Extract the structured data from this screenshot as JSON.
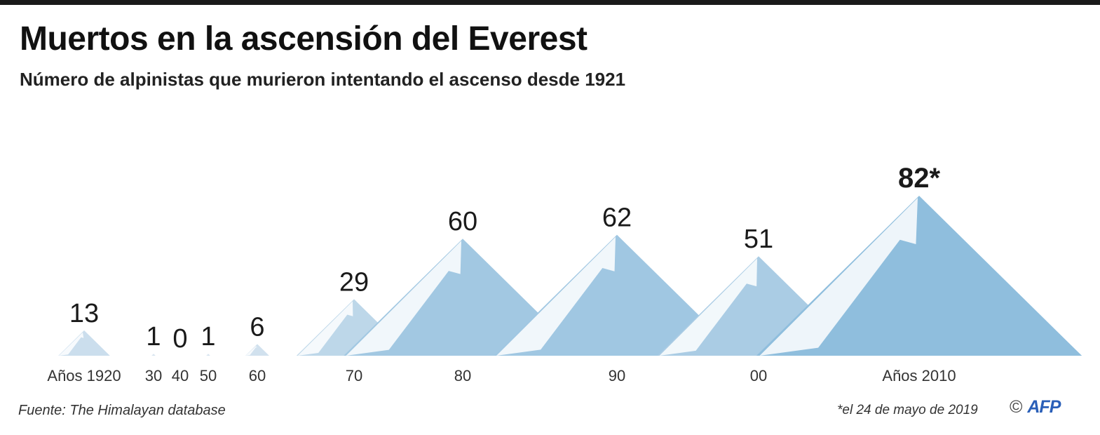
{
  "title": "Muertos en la ascensión del Everest",
  "subtitle": "Número de alpinistas que murieron intentando el ascenso desde 1921",
  "source": "Fuente: The Himalayan database",
  "footnote": "*el 24 de mayo de 2019",
  "credit": {
    "copyright": "©",
    "agency": "AFP"
  },
  "colors": {
    "peak_light": "#e3ebf3",
    "peak_dark": "#8fbedd",
    "snow": "#ffffff"
  },
  "chart_data": {
    "type": "area",
    "title": "Muertos en la ascensión del Everest",
    "subtitle": "Número de alpinistas que murieron intentando el ascenso desde 1921",
    "categories": [
      "Años 1920",
      "30",
      "40",
      "50",
      "60",
      "70",
      "80",
      "90",
      "00",
      "Años 2010"
    ],
    "values": [
      13,
      1,
      0,
      1,
      6,
      29,
      60,
      62,
      51,
      82
    ],
    "value_labels": [
      "13",
      "1",
      "0",
      "1",
      "6",
      "29",
      "60",
      "62",
      "51",
      "82*"
    ],
    "xlabel": "",
    "ylabel": "",
    "grid": false
  }
}
